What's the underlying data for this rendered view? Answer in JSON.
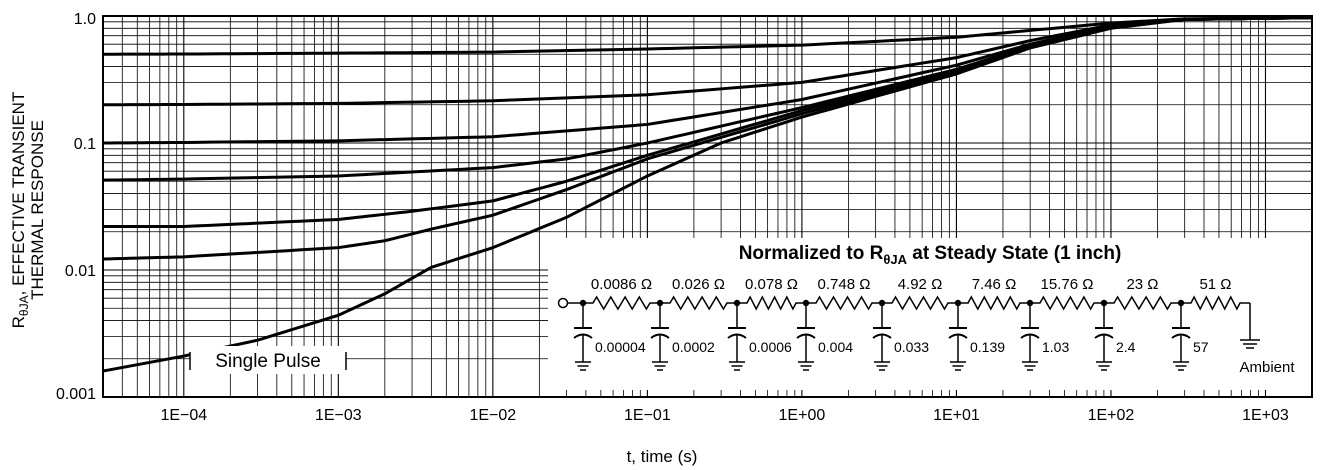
{
  "chart_data": {
    "type": "line",
    "title": "",
    "xlabel": "t, time (s)",
    "ylabel_main": "R",
    "ylabel_sub": "θJA",
    "ylabel_rest": ", EFFECTIVE TRANSIENT",
    "ylabel_line2": "THERMAL RESPONSE",
    "xscale": "log",
    "yscale": "log",
    "xlim": [
      3e-05,
      2000
    ],
    "ylim": [
      0.001,
      1.0
    ],
    "grid": true,
    "x_tick_values": [
      0.0001,
      0.001,
      0.01,
      0.1,
      1,
      10,
      100,
      1000
    ],
    "x_tick_labels": [
      "1E−04",
      "1E−03",
      "1E−02",
      "1E−01",
      "1E+00",
      "1E+01",
      "1E+02",
      "1E+03"
    ],
    "y_tick_values": [
      0.001,
      0.01,
      0.1,
      1.0
    ],
    "y_tick_labels": [
      "0.001",
      "0.01",
      "0.1",
      "1.0"
    ],
    "series": [
      {
        "values": [
          [
            3e-05,
            0.5
          ],
          [
            0.0001,
            0.502
          ],
          [
            0.001,
            0.51
          ],
          [
            0.01,
            0.52
          ],
          [
            0.1,
            0.55
          ],
          [
            1,
            0.59
          ],
          [
            10,
            0.68
          ],
          [
            30,
            0.77
          ],
          [
            100,
            0.88
          ],
          [
            300,
            0.95
          ],
          [
            2000,
            0.97
          ]
        ]
      },
      {
        "values": [
          [
            3e-05,
            0.2
          ],
          [
            0.0001,
            0.201
          ],
          [
            0.001,
            0.205
          ],
          [
            0.01,
            0.215
          ],
          [
            0.1,
            0.24
          ],
          [
            1,
            0.3
          ],
          [
            10,
            0.47
          ],
          [
            30,
            0.64
          ],
          [
            100,
            0.85
          ],
          [
            300,
            0.94
          ],
          [
            2000,
            0.97
          ]
        ]
      },
      {
        "values": [
          [
            3e-05,
            0.1
          ],
          [
            0.0001,
            0.101
          ],
          [
            0.001,
            0.104
          ],
          [
            0.01,
            0.112
          ],
          [
            0.1,
            0.14
          ],
          [
            1,
            0.22
          ],
          [
            10,
            0.41
          ],
          [
            30,
            0.6
          ],
          [
            100,
            0.83
          ],
          [
            300,
            0.94
          ],
          [
            2000,
            0.97
          ]
        ]
      },
      {
        "values": [
          [
            3e-05,
            0.051
          ],
          [
            0.0001,
            0.052
          ],
          [
            0.001,
            0.055
          ],
          [
            0.01,
            0.064
          ],
          [
            0.03,
            0.075
          ],
          [
            0.1,
            0.1
          ],
          [
            1,
            0.19
          ],
          [
            10,
            0.38
          ],
          [
            30,
            0.58
          ],
          [
            100,
            0.82
          ],
          [
            300,
            0.94
          ],
          [
            2000,
            0.97
          ]
        ]
      },
      {
        "values": [
          [
            3e-05,
            0.022
          ],
          [
            0.0001,
            0.022
          ],
          [
            0.001,
            0.025
          ],
          [
            0.003,
            0.029
          ],
          [
            0.01,
            0.035
          ],
          [
            0.03,
            0.05
          ],
          [
            0.1,
            0.08
          ],
          [
            1,
            0.18
          ],
          [
            10,
            0.37
          ],
          [
            30,
            0.58
          ],
          [
            100,
            0.82
          ],
          [
            300,
            0.94
          ],
          [
            2000,
            0.97
          ]
        ]
      },
      {
        "values": [
          [
            3e-05,
            0.0122
          ],
          [
            0.0001,
            0.0127
          ],
          [
            0.001,
            0.015
          ],
          [
            0.002,
            0.017
          ],
          [
            0.004,
            0.021
          ],
          [
            0.01,
            0.027
          ],
          [
            0.03,
            0.043
          ],
          [
            0.1,
            0.075
          ],
          [
            1,
            0.17
          ],
          [
            10,
            0.36
          ],
          [
            30,
            0.57
          ],
          [
            100,
            0.81
          ],
          [
            300,
            0.94
          ],
          [
            2000,
            0.97
          ]
        ]
      },
      {
        "name": "Single Pulse",
        "values": [
          [
            3e-05,
            0.0016
          ],
          [
            0.0001,
            0.0021
          ],
          [
            0.0003,
            0.0028
          ],
          [
            0.001,
            0.0044
          ],
          [
            0.002,
            0.0065
          ],
          [
            0.004,
            0.0105
          ],
          [
            0.01,
            0.015
          ],
          [
            0.03,
            0.026
          ],
          [
            0.1,
            0.055
          ],
          [
            0.3,
            0.1
          ],
          [
            1,
            0.16
          ],
          [
            10,
            0.35
          ],
          [
            30,
            0.56
          ],
          [
            100,
            0.8
          ],
          [
            300,
            0.94
          ],
          [
            2000,
            0.97
          ]
        ]
      }
    ],
    "annotations": {
      "single_pulse": "Single Pulse",
      "network_title_main": "Normalized to R",
      "network_title_sub": "θJA",
      "network_title_rest": " at Steady State (1 inch)",
      "resistors": [
        "0.0086 Ω",
        "0.026 Ω",
        "0.078 Ω",
        "0.748 Ω",
        "4.92 Ω",
        "7.46 Ω",
        "15.76 Ω",
        "23 Ω",
        "51 Ω"
      ],
      "capacitors": [
        "0.00004",
        "0.0002",
        "0.0006",
        "0.004",
        "0.033",
        "0.139",
        "1.03",
        "2.4",
        "57"
      ],
      "ambient": "Ambient"
    },
    "colors": {
      "lines": "#000000",
      "grid": "#000000",
      "background": "#ffffff"
    }
  }
}
